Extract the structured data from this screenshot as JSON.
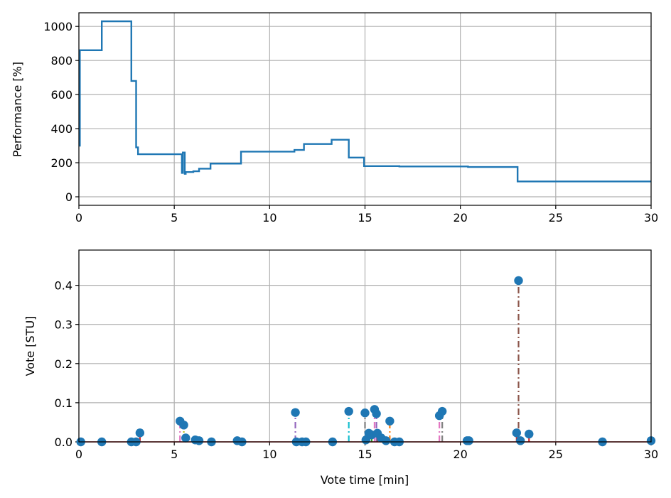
{
  "chart_data": [
    {
      "type": "line",
      "ylabel": "Performance [%]",
      "xlim": [
        0,
        30
      ],
      "ylim": [
        -50,
        1080
      ],
      "xticks": [
        "0",
        "5",
        "10",
        "15",
        "20",
        "25",
        "30"
      ],
      "yticks": [
        "0",
        "200",
        "400",
        "600",
        "800",
        "1000"
      ],
      "grid": true,
      "color": "#1f77b4",
      "x": [
        0.0,
        0.05,
        0.05,
        1.2,
        1.2,
        2.75,
        2.75,
        3.0,
        3.0,
        3.1,
        3.1,
        5.4,
        5.4,
        5.45,
        5.45,
        5.55,
        5.55,
        5.6,
        5.6,
        6.0,
        6.0,
        6.3,
        6.3,
        6.9,
        6.9,
        8.5,
        8.5,
        11.3,
        11.3,
        11.8,
        11.8,
        13.25,
        13.25,
        14.15,
        14.15,
        14.95,
        14.95,
        16.8,
        16.8,
        20.4,
        20.4,
        23.0,
        23.0,
        30.0
      ],
      "y": [
        300,
        300,
        860,
        860,
        1030,
        1030,
        680,
        680,
        290,
        290,
        250,
        250,
        140,
        140,
        260,
        260,
        135,
        135,
        145,
        145,
        150,
        150,
        165,
        165,
        195,
        195,
        265,
        265,
        275,
        275,
        310,
        310,
        335,
        335,
        230,
        230,
        180,
        180,
        178,
        178,
        175,
        175,
        90,
        90
      ]
    },
    {
      "type": "scatter",
      "xlabel": "Vote time [min]",
      "ylabel": "Vote [STU]",
      "xlim": [
        0,
        30
      ],
      "ylim": [
        0,
        0.49
      ],
      "xticks": [
        "0",
        "5",
        "10",
        "15",
        "20",
        "25",
        "30"
      ],
      "yticks": [
        "0.0",
        "0.1",
        "0.2",
        "0.3",
        "0.4"
      ],
      "grid": true,
      "marker_color": "#1f77b4",
      "baseline_color": "#d62728",
      "points": [
        {
          "x": 0.1,
          "y": 0.0,
          "stem": "#1f77b4"
        },
        {
          "x": 1.2,
          "y": 0.0,
          "stem": "#1f77b4"
        },
        {
          "x": 2.75,
          "y": 0.0,
          "stem": "#1f77b4"
        },
        {
          "x": 3.0,
          "y": 0.0,
          "stem": "#ff7f0e"
        },
        {
          "x": 3.2,
          "y": 0.023,
          "stem": "#d62728"
        },
        {
          "x": 5.3,
          "y": 0.053,
          "stem": "#e377c2"
        },
        {
          "x": 5.5,
          "y": 0.043,
          "stem": "#bcbd22"
        },
        {
          "x": 5.6,
          "y": 0.01,
          "stem": "#2ca02c"
        },
        {
          "x": 6.1,
          "y": 0.005,
          "stem": "#8c564b"
        },
        {
          "x": 6.3,
          "y": 0.003,
          "stem": "#7f7f7f"
        },
        {
          "x": 6.95,
          "y": 0.0,
          "stem": "#1f77b4"
        },
        {
          "x": 8.3,
          "y": 0.003,
          "stem": "#ff7f0e"
        },
        {
          "x": 8.55,
          "y": 0.0,
          "stem": "#2ca02c"
        },
        {
          "x": 11.35,
          "y": 0.075,
          "stem": "#9467bd"
        },
        {
          "x": 11.4,
          "y": 0.0,
          "stem": "#8c564b"
        },
        {
          "x": 11.7,
          "y": 0.0,
          "stem": "#e377c2"
        },
        {
          "x": 11.9,
          "y": 0.0,
          "stem": "#7f7f7f"
        },
        {
          "x": 13.3,
          "y": 0.0,
          "stem": "#bcbd22"
        },
        {
          "x": 14.15,
          "y": 0.078,
          "stem": "#17becf"
        },
        {
          "x": 15.0,
          "y": 0.074,
          "stem": "#7f7f7f"
        },
        {
          "x": 15.05,
          "y": 0.005,
          "stem": "#1f77b4"
        },
        {
          "x": 15.2,
          "y": 0.022,
          "stem": "#ff7f0e"
        },
        {
          "x": 15.35,
          "y": 0.018,
          "stem": "#2ca02c"
        },
        {
          "x": 15.5,
          "y": 0.083,
          "stem": "#e377c2"
        },
        {
          "x": 15.6,
          "y": 0.072,
          "stem": "#9467bd"
        },
        {
          "x": 15.65,
          "y": 0.022,
          "stem": "#8c564b"
        },
        {
          "x": 15.85,
          "y": 0.01,
          "stem": "#7f7f7f"
        },
        {
          "x": 16.1,
          "y": 0.003,
          "stem": "#bcbd22"
        },
        {
          "x": 16.3,
          "y": 0.053,
          "stem": "#ff7f0e"
        },
        {
          "x": 16.55,
          "y": 0.0,
          "stem": "#17becf"
        },
        {
          "x": 16.8,
          "y": 0.0,
          "stem": "#1f77b4"
        },
        {
          "x": 18.9,
          "y": 0.067,
          "stem": "#e377c2"
        },
        {
          "x": 19.05,
          "y": 0.078,
          "stem": "#7f7f7f"
        },
        {
          "x": 20.35,
          "y": 0.003,
          "stem": "#2ca02c"
        },
        {
          "x": 20.45,
          "y": 0.003,
          "stem": "#9467bd"
        },
        {
          "x": 22.95,
          "y": 0.023,
          "stem": "#d62728"
        },
        {
          "x": 23.05,
          "y": 0.412,
          "stem": "#8c564b"
        },
        {
          "x": 23.15,
          "y": 0.003,
          "stem": "#e377c2"
        },
        {
          "x": 23.6,
          "y": 0.02,
          "stem": "#d62728"
        },
        {
          "x": 27.45,
          "y": 0.0,
          "stem": "#1f77b4"
        },
        {
          "x": 30.0,
          "y": 0.003,
          "stem": "#1f77b4"
        }
      ]
    }
  ]
}
